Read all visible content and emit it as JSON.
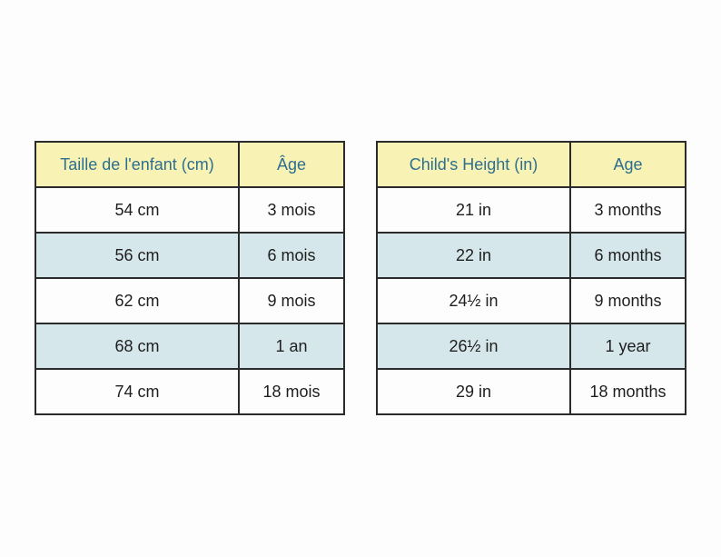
{
  "tables": [
    {
      "headers": [
        "Taille de l'enfant (cm)",
        "Âge"
      ],
      "rows": [
        [
          "54 cm",
          "3 mois"
        ],
        [
          "56 cm",
          "6 mois"
        ],
        [
          "62 cm",
          "9 mois"
        ],
        [
          "68 cm",
          "1 an"
        ],
        [
          "74 cm",
          "18 mois"
        ]
      ]
    },
    {
      "headers": [
        "Child's Height (in)",
        "Age"
      ],
      "rows": [
        [
          "21 in",
          "3 months"
        ],
        [
          "22 in",
          "6 months"
        ],
        [
          "24½ in",
          "9 months"
        ],
        [
          "26½ in",
          "1 year"
        ],
        [
          "29 in",
          "18 months"
        ]
      ]
    }
  ]
}
